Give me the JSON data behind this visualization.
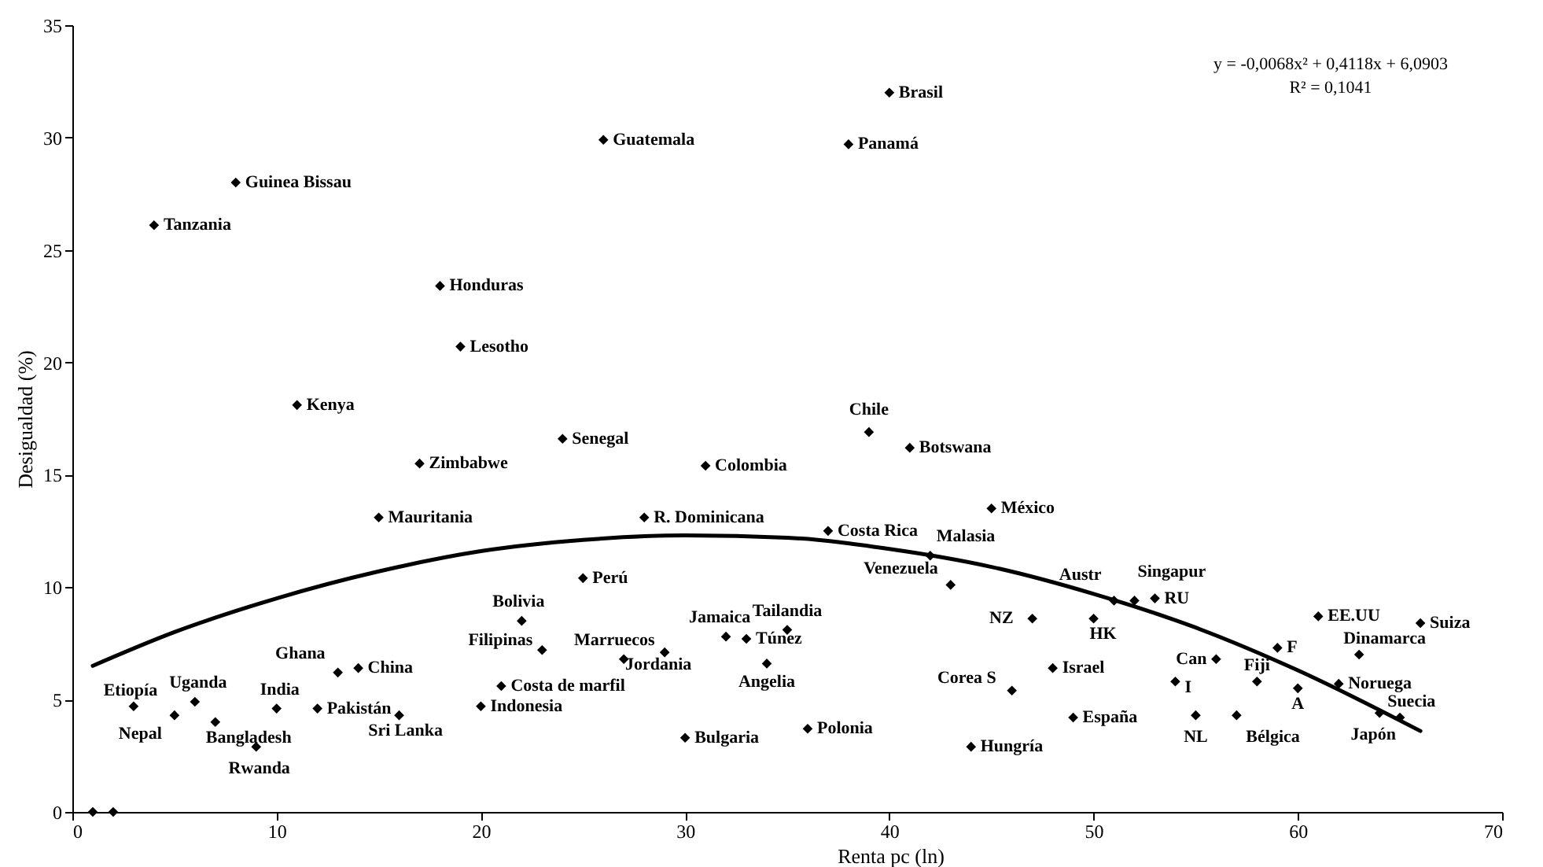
{
  "chart_data": {
    "type": "scatter",
    "xlabel": "Renta pc (ln)",
    "ylabel": "Desigualdad (%)",
    "xlim": [
      0,
      70
    ],
    "xticks": [
      0,
      10,
      20,
      30,
      40,
      50,
      60,
      70
    ],
    "ylim": [
      0,
      35
    ],
    "yticks": [
      0,
      5,
      10,
      15,
      20,
      25,
      30,
      35
    ],
    "marker": "diamond",
    "annotations": [
      "y = -0,0068x² + 0,4118x + 6,0903",
      "R² = 0,1041"
    ],
    "series": [
      {
        "color": "#000000",
        "x": [
          1,
          2,
          3,
          4,
          5,
          6,
          7,
          8,
          9,
          10,
          11,
          12,
          13,
          14,
          15,
          16,
          17,
          18,
          19,
          20,
          21,
          22,
          23,
          24,
          25,
          26,
          27,
          28,
          29,
          30,
          31,
          32,
          33,
          34,
          35,
          36,
          37,
          38,
          39,
          40,
          41,
          42,
          43,
          44,
          45,
          46,
          47,
          48,
          49,
          50,
          51,
          52,
          53,
          54,
          55,
          56,
          57,
          58,
          59,
          60,
          61,
          62,
          63,
          64,
          65,
          66
        ],
        "values": [
          0,
          0,
          4.7,
          26.1,
          4.3,
          4.9,
          4.0,
          28.0,
          2.9,
          4.6,
          18.1,
          4.6,
          6.2,
          6.4,
          13.1,
          4.3,
          15.5,
          23.4,
          20.7,
          4.7,
          5.6,
          8.5,
          7.2,
          16.6,
          10.4,
          29.9,
          6.8,
          13.1,
          7.1,
          3.3,
          15.4,
          7.8,
          7.7,
          6.6,
          8.1,
          3.7,
          12.5,
          29.7,
          16.9,
          32.0,
          16.2,
          11.4,
          10.1,
          2.9,
          13.5,
          5.4,
          8.6,
          6.4,
          4.2,
          8.6,
          9.4,
          9.4,
          9.5,
          5.8,
          4.3,
          6.8,
          4.3,
          5.8,
          7.3,
          5.5,
          8.7,
          5.7,
          7.0,
          4.4,
          4.2,
          8.4
        ],
        "value_labels": [
          null,
          null,
          "Etiopía",
          "Tanzania",
          "Nepal",
          "Uganda",
          "Bangladesh",
          "Guinea Bissau",
          "Rwanda",
          "India",
          "Kenya",
          "Pakistán",
          "Ghana",
          "China",
          "Mauritania",
          "Sri Lanka",
          "Zimbabwe",
          "Honduras",
          "Lesotho",
          "Indonesia",
          "Costa de marfil",
          "Bolivia",
          "Filipinas",
          "Senegal",
          "Perú",
          "Guatemala",
          "Marruecos",
          "R. Dominicana",
          "Jordania",
          "Bulgaria",
          "Colombia",
          "Jamaica",
          "Túnez",
          "Angelia",
          "Tailandia",
          "Polonia",
          "Costa Rica",
          "Panamá",
          "Chile",
          "Brasil",
          "Botswana",
          "Malasia",
          "Venezuela",
          "Hungría",
          "México",
          "Corea S",
          "NZ",
          "Israel",
          "España",
          "HK",
          "Austr",
          "Singapur",
          "RU",
          "I",
          "NL",
          "Can",
          "Bélgica",
          "Fiji",
          "F",
          "A",
          "EE.UU",
          "Noruega",
          "Dinamarca",
          "Japón",
          "Suecia",
          "Suiza"
        ]
      },
      {
        "type": "line",
        "marker": "none",
        "color": "#000000",
        "x": [
          1,
          5,
          10,
          15,
          20,
          25,
          30,
          35,
          40,
          45,
          50,
          55,
          60,
          66
        ],
        "values": [
          6.5,
          8.0,
          9.5,
          10.7,
          11.6,
          12.1,
          12.3,
          12.2,
          11.7,
          10.9,
          9.7,
          8.2,
          6.3,
          3.6
        ]
      }
    ]
  }
}
